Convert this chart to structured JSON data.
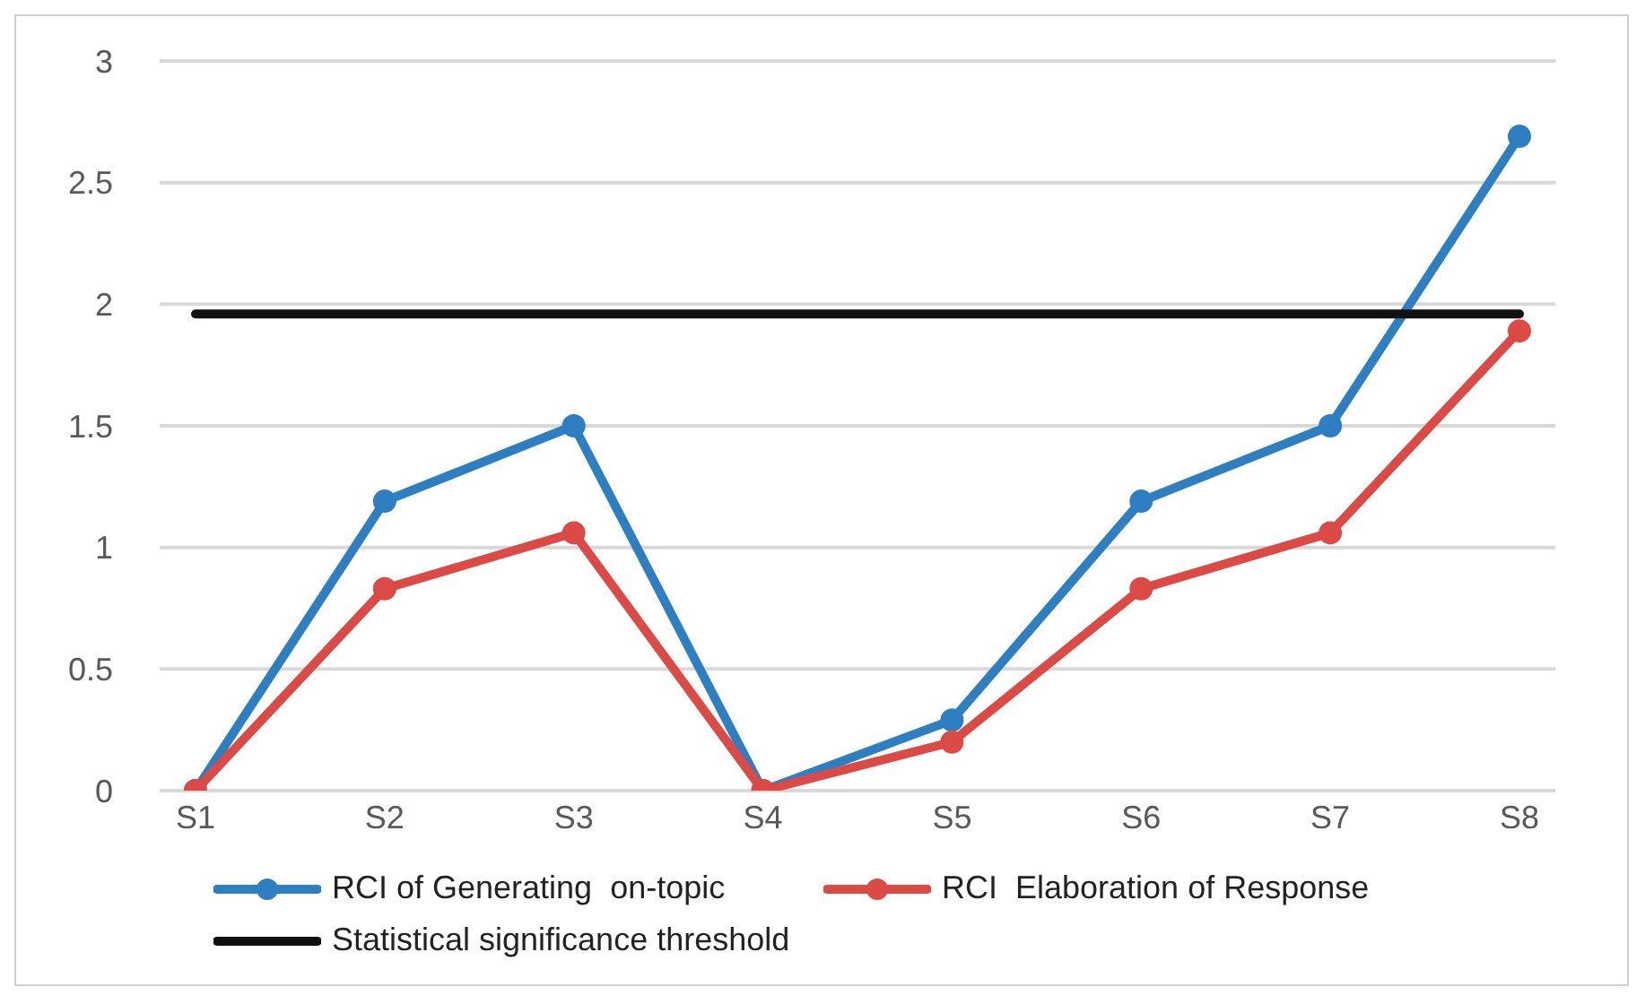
{
  "chart_data": {
    "type": "line",
    "categories": [
      "S1",
      "S2",
      "S3",
      "S4",
      "S5",
      "S6",
      "S7",
      "S8"
    ],
    "series": [
      {
        "name": "RCI of Generating  on-topic",
        "color": "#2e7fc1",
        "values": [
          0,
          1.19,
          1.5,
          0,
          0.29,
          1.19,
          1.5,
          2.69
        ]
      },
      {
        "name": "RCI  Elaboration of Response",
        "color": "#dc4a45",
        "values": [
          0,
          0.83,
          1.06,
          0,
          0.2,
          0.83,
          1.06,
          1.89
        ]
      },
      {
        "name": "Statistical significance threshold",
        "color": "#111111",
        "marker": "none",
        "values": [
          1.96,
          1.96,
          1.96,
          1.96,
          1.96,
          1.96,
          1.96,
          1.96
        ]
      }
    ],
    "ylim": [
      0,
      3
    ],
    "yticks": [
      0,
      0.5,
      1,
      1.5,
      2,
      2.5,
      3
    ],
    "grid": "y",
    "legend": "bottom",
    "marker": "circle"
  }
}
